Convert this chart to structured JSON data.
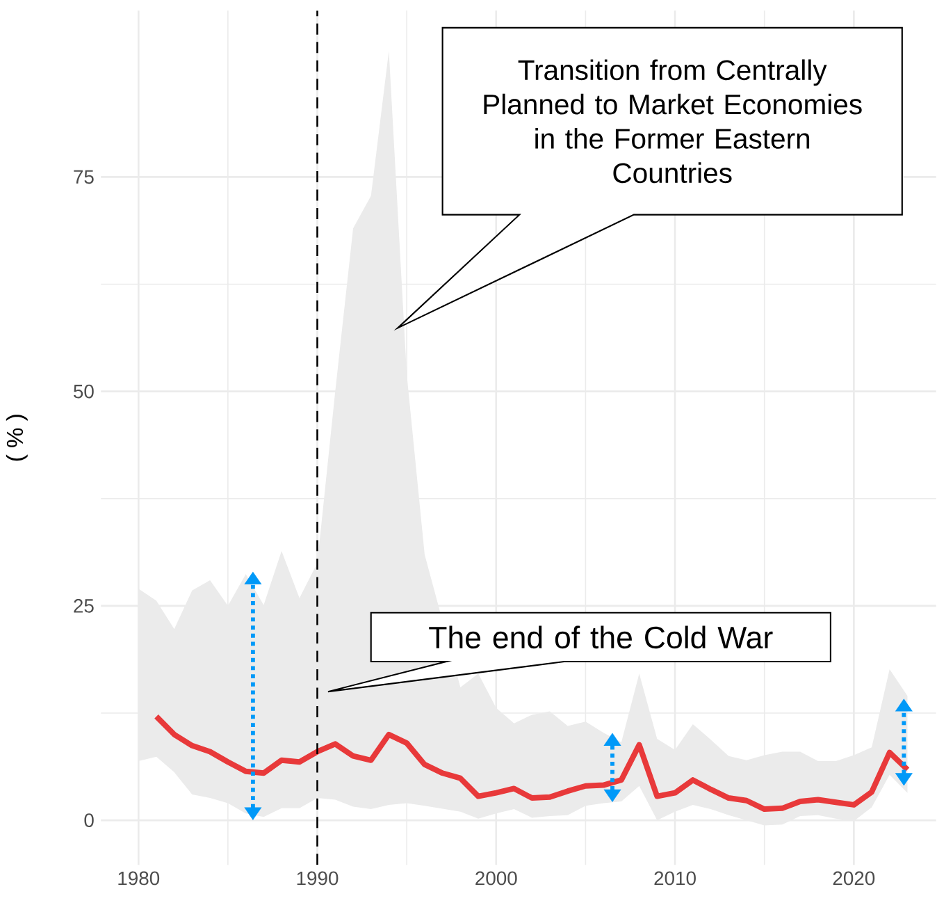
{
  "chart_data": {
    "type": "line",
    "ylabel": "( % )",
    "x": [
      1980,
      1981,
      1982,
      1983,
      1984,
      1985,
      1986,
      1987,
      1988,
      1989,
      1990,
      1991,
      1992,
      1993,
      1994,
      1995,
      1996,
      1997,
      1998,
      1999,
      2000,
      2001,
      2002,
      2003,
      2004,
      2005,
      2006,
      2007,
      2008,
      2009,
      2010,
      2011,
      2012,
      2013,
      2014,
      2015,
      2016,
      2017,
      2018,
      2019,
      2020,
      2021,
      2022,
      2023
    ],
    "series": [
      {
        "color": "#e8393a",
        "values": [
          null,
          12.1,
          10.0,
          8.7,
          8.0,
          6.8,
          5.7,
          5.5,
          7.0,
          6.8,
          8.0,
          8.9,
          7.5,
          7.0,
          10.0,
          9.0,
          6.5,
          5.5,
          4.9,
          2.8,
          3.2,
          3.7,
          2.6,
          2.7,
          3.4,
          4.0,
          4.1,
          4.7,
          8.8,
          2.8,
          3.2,
          4.7,
          3.6,
          2.6,
          2.3,
          1.3,
          1.4,
          2.2,
          2.4,
          2.1,
          1.8,
          3.3,
          7.9,
          5.9
        ],
        "upper": [
          27.0,
          25.6,
          22.3,
          26.8,
          28.0,
          25.0,
          28.7,
          25.1,
          31.4,
          25.9,
          30,
          50,
          69.0,
          72.8,
          89.7,
          52,
          31,
          null,
          15.5,
          17.1,
          13.1,
          11.3,
          12.3,
          12.7,
          11.0,
          11.5,
          10.2,
          9.1,
          17.1,
          9.5,
          8.2,
          11.2,
          9.4,
          7.5,
          7.0,
          7.6,
          8.0,
          8.0,
          6.9,
          6.9,
          7.6,
          8.5,
          17.6,
          14.5
        ],
        "lower": [
          6.9,
          7.4,
          5.6,
          3.0,
          2.6,
          2.0,
          0.8,
          0.4,
          1.4,
          1.4,
          2.6,
          2.4,
          1.6,
          1.3,
          1.8,
          2.0,
          1.7,
          null,
          1.0,
          0.2,
          0.8,
          1.3,
          0.3,
          0.5,
          0.6,
          1.7,
          2.0,
          2.2,
          4.0,
          0.0,
          1.0,
          1.8,
          1.3,
          0.6,
          0.0,
          -0.6,
          -0.5,
          0.5,
          0.6,
          0.2,
          -0.1,
          1.5,
          5.3,
          3.2
        ]
      }
    ],
    "ref_lines": [
      {
        "axis": "x",
        "value": 1990,
        "line_style": "dashed",
        "color": "#000000"
      }
    ],
    "annotations": [
      "Transition from Centrally Planned to Market Economies in the Former Eastern Countries",
      "The end of the Cold War"
    ],
    "xlim": [
      1977.9,
      2024.6
    ],
    "ylim": [
      -5.2,
      94.4
    ],
    "xticks": [
      1980,
      1990,
      2000,
      2010,
      2020
    ],
    "yticks": [
      0,
      25,
      50,
      75
    ],
    "grid": true
  }
}
